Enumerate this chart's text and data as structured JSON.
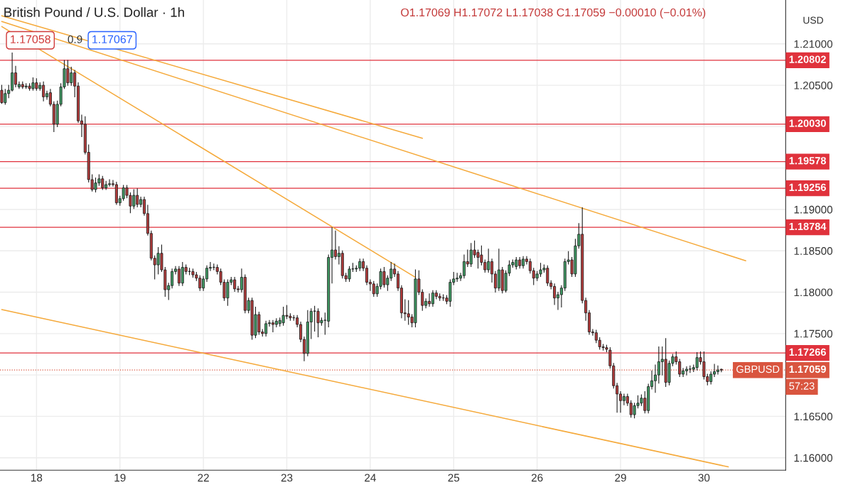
{
  "chart_data": {
    "type": "candlestick",
    "title": "British Pound / U.S. Dollar · 1h",
    "subtitle": "O1.17069 H1.17072 L1.17038 C1.17059 −0.00010 (−0.01%)",
    "ylabel": "USD",
    "annotations": [
      "1.17058",
      "0.9",
      "1.17067",
      "57:23",
      {
        "text": "GBPUSD",
        "y": 1.17059
      }
    ],
    "categories": [
      null,
      null,
      null,
      null,
      null,
      null,
      null,
      null,
      null,
      null,
      "18",
      null,
      null,
      null,
      null,
      null,
      null,
      null,
      null,
      null,
      null,
      null,
      null,
      null,
      null,
      null,
      null,
      null,
      null,
      null,
      null,
      null,
      null,
      null,
      "19",
      null,
      null,
      null,
      null,
      null,
      null,
      null,
      null,
      null,
      null,
      null,
      null,
      null,
      null,
      null,
      null,
      null,
      null,
      null,
      null,
      null,
      null,
      null,
      "22",
      null,
      null,
      null,
      null,
      null,
      null,
      null,
      null,
      null,
      null,
      null,
      null,
      null,
      null,
      null,
      null,
      null,
      null,
      null,
      null,
      null,
      null,
      null,
      "23",
      null,
      null,
      null,
      null,
      null,
      null,
      null,
      null,
      null,
      null,
      null,
      null,
      null,
      null,
      null,
      null,
      null,
      null,
      null,
      null,
      null,
      null,
      null,
      "24",
      null,
      null,
      null,
      null,
      null,
      null,
      null,
      null,
      null,
      null,
      null,
      null,
      null,
      null,
      null,
      null,
      null,
      null,
      null,
      null,
      null,
      null,
      null,
      "25",
      null,
      null,
      null,
      null,
      null,
      null,
      null,
      null,
      null,
      null,
      null,
      null,
      null,
      null,
      null,
      null,
      null,
      null,
      null,
      null,
      null,
      null,
      null,
      "26",
      null,
      null,
      null,
      null,
      null,
      null,
      null,
      null,
      null,
      null,
      null,
      null,
      null,
      null,
      null,
      null,
      null,
      null,
      null,
      null,
      null,
      null,
      null,
      "29",
      null,
      null,
      null,
      null,
      null,
      null,
      null,
      null,
      null,
      null,
      null,
      null,
      null,
      null,
      null,
      null,
      null,
      null,
      null,
      null,
      null,
      null,
      null,
      "30",
      null,
      null,
      null,
      null,
      null,
      null,
      null,
      null,
      null,
      null,
      null,
      null,
      null,
      null,
      null,
      null,
      null,
      null,
      null,
      null,
      null,
      null,
      null
    ],
    "ohlc": [
      [
        1.2044,
        1.205,
        1.2028,
        1.2029
      ],
      [
        1.2029,
        1.2045,
        1.2027,
        1.204
      ],
      [
        1.204,
        1.205,
        1.2035,
        1.2044
      ],
      [
        1.2044,
        1.2089,
        1.2043,
        1.2065
      ],
      [
        1.2065,
        1.2073,
        1.2048,
        1.2051
      ],
      [
        1.2048,
        1.2054,
        1.2046,
        1.2051
      ],
      [
        1.2051,
        1.2054,
        1.2046,
        1.2048
      ],
      [
        1.2048,
        1.2052,
        1.2046,
        1.2049
      ],
      [
        1.2049,
        1.2052,
        1.2044,
        1.2046
      ],
      [
        1.2046,
        1.2059,
        1.2044,
        1.2053
      ],
      [
        1.2053,
        1.2058,
        1.2044,
        1.2046
      ],
      [
        1.2046,
        1.2053,
        1.2044,
        1.205
      ],
      [
        1.205,
        1.2054,
        1.2031,
        1.2036
      ],
      [
        1.2036,
        1.2043,
        1.2033,
        1.204
      ],
      [
        1.2041,
        1.2045,
        1.2025,
        1.2027
      ],
      [
        1.2027,
        1.203,
        1.1994,
        1.2003
      ],
      [
        1.2003,
        1.2031,
        1.2,
        1.2027
      ],
      [
        1.2027,
        1.2052,
        1.2025,
        1.2048
      ],
      [
        1.2048,
        1.208,
        1.2046,
        1.207
      ],
      [
        1.207,
        1.208,
        1.205,
        1.2053
      ],
      [
        1.2053,
        1.2072,
        1.205,
        1.2065
      ],
      [
        1.2065,
        1.2068,
        1.2036,
        1.2049
      ],
      [
        1.2049,
        1.2053,
        1.2005,
        1.2007
      ],
      [
        1.2007,
        1.2014,
        1.1988,
        1.2003
      ],
      [
        1.2003,
        1.2012,
        1.1967,
        1.1969
      ],
      [
        1.1969,
        1.1978,
        1.1933,
        1.1936
      ],
      [
        1.1936,
        1.1942,
        1.1922,
        1.1924
      ],
      [
        1.1924,
        1.1938,
        1.1921,
        1.1932
      ],
      [
        1.1932,
        1.1942,
        1.1929,
        1.1937
      ],
      [
        1.1937,
        1.194,
        1.1924,
        1.1926
      ],
      [
        1.1926,
        1.1934,
        1.1924,
        1.193
      ],
      [
        1.193,
        1.1936,
        1.1928,
        1.1931
      ],
      [
        1.1931,
        1.1935,
        1.1928,
        1.193
      ],
      [
        1.193,
        1.1933,
        1.1906,
        1.1908
      ],
      [
        1.1908,
        1.1916,
        1.1905,
        1.1913
      ],
      [
        1.1913,
        1.1929,
        1.1911,
        1.1926
      ],
      [
        1.1926,
        1.1929,
        1.1914,
        1.1917
      ],
      [
        1.1917,
        1.192,
        1.1896,
        1.1904
      ],
      [
        1.1904,
        1.1924,
        1.1901,
        1.1917
      ],
      [
        1.1917,
        1.1925,
        1.1903,
        1.1906
      ],
      [
        1.1906,
        1.1915,
        1.1903,
        1.1912
      ],
      [
        1.1912,
        1.1915,
        1.1893,
        1.1895
      ],
      [
        1.1895,
        1.1905,
        1.1869,
        1.1871
      ],
      [
        1.1871,
        1.1874,
        1.1839,
        1.1841
      ],
      [
        1.1841,
        1.1844,
        1.1816,
        1.1833
      ],
      [
        1.1833,
        1.1854,
        1.1822,
        1.1847
      ],
      [
        1.1847,
        1.1857,
        1.1825,
        1.1827
      ],
      [
        1.1827,
        1.183,
        1.1795,
        1.1803
      ],
      [
        1.1803,
        1.1811,
        1.1791,
        1.1808
      ],
      [
        1.1808,
        1.1828,
        1.1805,
        1.1825
      ],
      [
        1.1825,
        1.1831,
        1.1822,
        1.1828
      ],
      [
        1.1828,
        1.1831,
        1.1808,
        1.1811
      ],
      [
        1.1811,
        1.1836,
        1.1808,
        1.183
      ],
      [
        1.183,
        1.1833,
        1.1822,
        1.1825
      ],
      [
        1.1825,
        1.1829,
        1.1821,
        1.1825
      ],
      [
        1.1825,
        1.1828,
        1.1818,
        1.1821
      ],
      [
        1.1821,
        1.1824,
        1.1814,
        1.1817
      ],
      [
        1.1817,
        1.182,
        1.1802,
        1.1805
      ],
      [
        1.1805,
        1.1819,
        1.1802,
        1.1816
      ],
      [
        1.1816,
        1.1832,
        1.1813,
        1.1829
      ],
      [
        1.1829,
        1.1836,
        1.1826,
        1.183
      ],
      [
        1.183,
        1.1834,
        1.1827,
        1.183
      ],
      [
        1.183,
        1.1833,
        1.1822,
        1.1825
      ],
      [
        1.1825,
        1.1828,
        1.1809,
        1.1812
      ],
      [
        1.1812,
        1.1815,
        1.179,
        1.1793
      ],
      [
        1.1793,
        1.1815,
        1.1784,
        1.1812
      ],
      [
        1.1812,
        1.1818,
        1.1809,
        1.1815
      ],
      [
        1.1815,
        1.1818,
        1.1801,
        1.1804
      ],
      [
        1.1804,
        1.1807,
        1.18,
        1.1803
      ],
      [
        1.1803,
        1.1828,
        1.18,
        1.1818
      ],
      [
        1.1818,
        1.1821,
        1.1775,
        1.1778
      ],
      [
        1.1778,
        1.1793,
        1.1775,
        1.179
      ],
      [
        1.179,
        1.1793,
        1.1743,
        1.1748
      ],
      [
        1.1748,
        1.1782,
        1.1745,
        1.1773
      ],
      [
        1.1773,
        1.1776,
        1.1749,
        1.1752
      ],
      [
        1.1752,
        1.1755,
        1.1747,
        1.175
      ],
      [
        1.175,
        1.1765,
        1.1747,
        1.1762
      ],
      [
        1.1762,
        1.1766,
        1.1759,
        1.1763
      ],
      [
        1.1763,
        1.1766,
        1.1752,
        1.1761
      ],
      [
        1.1761,
        1.1768,
        1.1758,
        1.1765
      ],
      [
        1.1762,
        1.1769,
        1.1759,
        1.1766
      ],
      [
        1.1763,
        1.1782,
        1.176,
        1.1772
      ],
      [
        1.1772,
        1.1784,
        1.1768,
        1.1771
      ],
      [
        1.1771,
        1.1774,
        1.1766,
        1.1769
      ],
      [
        1.1769,
        1.1772,
        1.1766,
        1.1769
      ],
      [
        1.1769,
        1.1772,
        1.1758,
        1.1761
      ],
      [
        1.1761,
        1.1764,
        1.174,
        1.1743
      ],
      [
        1.1743,
        1.1746,
        1.1717,
        1.1726
      ],
      [
        1.1726,
        1.1778,
        1.1723,
        1.1764
      ],
      [
        1.1764,
        1.178,
        1.1744,
        1.1777
      ],
      [
        1.1777,
        1.1783,
        1.1753,
        1.1777
      ],
      [
        1.1777,
        1.178,
        1.1746,
        1.1763
      ],
      [
        1.1763,
        1.1769,
        1.176,
        1.1766
      ],
      [
        1.1766,
        1.1775,
        1.1749,
        1.1766
      ],
      [
        1.1765,
        1.1845,
        1.1758,
        1.1842
      ],
      [
        1.1842,
        1.1878,
        1.1811,
        1.1851
      ],
      [
        1.1851,
        1.1874,
        1.184,
        1.1843
      ],
      [
        1.1843,
        1.1855,
        1.1834,
        1.1847
      ],
      [
        1.1847,
        1.185,
        1.1817,
        1.182
      ],
      [
        1.182,
        1.1823,
        1.1813,
        1.1816
      ],
      [
        1.1816,
        1.1831,
        1.1813,
        1.1828
      ],
      [
        1.1828,
        1.1835,
        1.1825,
        1.1828
      ],
      [
        1.1828,
        1.1832,
        1.1825,
        1.1829
      ],
      [
        1.1829,
        1.184,
        1.1826,
        1.1837
      ],
      [
        1.1837,
        1.184,
        1.1826,
        1.1829
      ],
      [
        1.1829,
        1.1832,
        1.1809,
        1.1812
      ],
      [
        1.1812,
        1.1815,
        1.1802,
        1.181
      ],
      [
        1.181,
        1.1813,
        1.1795,
        1.1798
      ],
      [
        1.1798,
        1.181,
        1.1795,
        1.1807
      ],
      [
        1.1807,
        1.1828,
        1.1804,
        1.1825
      ],
      [
        1.1825,
        1.183,
        1.1806,
        1.1809
      ],
      [
        1.1809,
        1.182,
        1.1802,
        1.1817
      ],
      [
        1.1817,
        1.1836,
        1.1814,
        1.1828
      ],
      [
        1.1828,
        1.1834,
        1.1819,
        1.1822
      ],
      [
        1.1822,
        1.1825,
        1.1802,
        1.1805
      ],
      [
        1.1805,
        1.1808,
        1.1769,
        1.1775
      ],
      [
        1.1775,
        1.1791,
        1.1766,
        1.1774
      ],
      [
        1.1774,
        1.179,
        1.1761,
        1.177
      ],
      [
        1.177,
        1.1773,
        1.1758,
        1.1763
      ],
      [
        1.1763,
        1.1827,
        1.1758,
        1.1816
      ],
      [
        1.1816,
        1.1826,
        1.1797,
        1.18
      ],
      [
        1.18,
        1.1803,
        1.1778,
        1.1784
      ],
      [
        1.1784,
        1.1792,
        1.1781,
        1.1789
      ],
      [
        1.1789,
        1.1798,
        1.1783,
        1.1786
      ],
      [
        1.1786,
        1.1802,
        1.1783,
        1.1799
      ],
      [
        1.1799,
        1.1802,
        1.1792,
        1.1795
      ],
      [
        1.1795,
        1.1798,
        1.179,
        1.1793
      ],
      [
        1.1793,
        1.1797,
        1.179,
        1.1793
      ],
      [
        1.1793,
        1.1796,
        1.1786,
        1.1789
      ],
      [
        1.1789,
        1.1815,
        1.1783,
        1.1812
      ],
      [
        1.1812,
        1.1824,
        1.1809,
        1.1816
      ],
      [
        1.1816,
        1.1823,
        1.1813,
        1.1817
      ],
      [
        1.1817,
        1.1823,
        1.1814,
        1.182
      ],
      [
        1.182,
        1.1845,
        1.1817,
        1.1837
      ],
      [
        1.1837,
        1.1851,
        1.1831,
        1.1834
      ],
      [
        1.1834,
        1.1859,
        1.1831,
        1.1851
      ],
      [
        1.1851,
        1.1862,
        1.1842,
        1.1845
      ],
      [
        1.1848,
        1.1851,
        1.1829,
        1.1842
      ],
      [
        1.1845,
        1.1856,
        1.1833,
        1.1836
      ],
      [
        1.1836,
        1.1839,
        1.1824,
        1.1827
      ],
      [
        1.1827,
        1.1852,
        1.1824,
        1.1837
      ],
      [
        1.1837,
        1.184,
        1.1812,
        1.1822
      ],
      [
        1.1822,
        1.1825,
        1.18,
        1.1805
      ],
      [
        1.1805,
        1.1852,
        1.1802,
        1.1827
      ],
      [
        1.1827,
        1.183,
        1.1799,
        1.1802
      ],
      [
        1.1802,
        1.1826,
        1.18,
        1.1823
      ],
      [
        1.1823,
        1.1838,
        1.182,
        1.1833
      ],
      [
        1.1833,
        1.1839,
        1.183,
        1.1836
      ],
      [
        1.1831,
        1.1842,
        1.1828,
        1.1839
      ],
      [
        1.1839,
        1.1842,
        1.1829,
        1.1832
      ],
      [
        1.1832,
        1.1843,
        1.1829,
        1.184
      ],
      [
        1.184,
        1.1843,
        1.1834,
        1.1837
      ],
      [
        1.1837,
        1.184,
        1.1823,
        1.1826
      ],
      [
        1.1826,
        1.1829,
        1.1809,
        1.1817
      ],
      [
        1.1817,
        1.1825,
        1.1814,
        1.1822
      ],
      [
        1.1822,
        1.1835,
        1.1819,
        1.1827
      ],
      [
        1.1827,
        1.1833,
        1.1824,
        1.1829
      ],
      [
        1.1829,
        1.1832,
        1.1808,
        1.1811
      ],
      [
        1.1811,
        1.1814,
        1.1804,
        1.1807
      ],
      [
        1.1807,
        1.181,
        1.1785,
        1.1793
      ],
      [
        1.1793,
        1.18,
        1.1779,
        1.1797
      ],
      [
        1.1797,
        1.1808,
        1.1782,
        1.1805
      ],
      [
        1.1805,
        1.184,
        1.1802,
        1.1837
      ],
      [
        1.1837,
        1.1849,
        1.1834,
        1.1839
      ],
      [
        1.1839,
        1.1842,
        1.1819,
        1.1822
      ],
      [
        1.1822,
        1.1864,
        1.1819,
        1.1856
      ],
      [
        1.1856,
        1.1883,
        1.1853,
        1.187
      ],
      [
        1.187,
        1.1902,
        1.1787,
        1.179
      ],
      [
        1.179,
        1.1793,
        1.1766,
        1.1775
      ],
      [
        1.1775,
        1.1778,
        1.1749,
        1.1752
      ],
      [
        1.1752,
        1.1755,
        1.1748,
        1.1751
      ],
      [
        1.1751,
        1.1754,
        1.1739,
        1.1742
      ],
      [
        1.1742,
        1.1745,
        1.1731,
        1.1734
      ],
      [
        1.1734,
        1.1737,
        1.173,
        1.1733
      ],
      [
        1.1733,
        1.1736,
        1.1728,
        1.1731
      ],
      [
        1.173,
        1.1733,
        1.1708,
        1.1711
      ],
      [
        1.1711,
        1.1714,
        1.1684,
        1.1687
      ],
      [
        1.1687,
        1.169,
        1.1655,
        1.1677
      ],
      [
        1.1677,
        1.168,
        1.1655,
        1.1669
      ],
      [
        1.1669,
        1.1677,
        1.1664,
        1.1674
      ],
      [
        1.1674,
        1.1677,
        1.1663,
        1.1666
      ],
      [
        1.1666,
        1.1669,
        1.1649,
        1.1652
      ],
      [
        1.1652,
        1.1666,
        1.1648,
        1.1663
      ],
      [
        1.1663,
        1.1675,
        1.166,
        1.1666
      ],
      [
        1.1666,
        1.1676,
        1.1663,
        1.1672
      ],
      [
        1.1672,
        1.168,
        1.1654,
        1.1657
      ],
      [
        1.1657,
        1.1689,
        1.1654,
        1.1686
      ],
      [
        1.1686,
        1.1705,
        1.1683,
        1.1693
      ],
      [
        1.1693,
        1.1712,
        1.1679,
        1.17
      ],
      [
        1.17,
        1.1734,
        1.169,
        1.1716
      ],
      [
        1.1716,
        1.1734,
        1.17,
        1.1719
      ],
      [
        1.1719,
        1.1744,
        1.1686,
        1.1691
      ],
      [
        1.1691,
        1.1717,
        1.1688,
        1.1714
      ],
      [
        1.1714,
        1.1725,
        1.1711,
        1.1722
      ],
      [
        1.1722,
        1.1728,
        1.1713,
        1.1716
      ],
      [
        1.1716,
        1.1719,
        1.1698,
        1.1701
      ],
      [
        1.1701,
        1.1708,
        1.1698,
        1.1705
      ],
      [
        1.1705,
        1.171,
        1.17,
        1.1707
      ],
      [
        1.1707,
        1.1711,
        1.1703,
        1.1707
      ],
      [
        1.1707,
        1.1712,
        1.1704,
        1.1709
      ],
      [
        1.1709,
        1.1727,
        1.1706,
        1.1721
      ],
      [
        1.1721,
        1.1728,
        1.1713,
        1.1716
      ],
      [
        1.1716,
        1.1728,
        1.1695,
        1.1698
      ],
      [
        1.1698,
        1.1701,
        1.1688,
        1.1692
      ],
      [
        1.1692,
        1.1704,
        1.1689,
        1.1701
      ],
      [
        1.1701,
        1.1713,
        1.1698,
        1.1704
      ],
      [
        1.1704,
        1.1711,
        1.1701,
        1.1706
      ],
      [
        1.17069,
        1.17072,
        1.17038,
        1.17059
      ],
      null,
      null,
      null,
      null,
      null,
      null,
      null,
      null,
      null,
      null,
      null,
      null,
      null,
      null,
      null,
      null,
      null,
      null
    ],
    "series": [
      {
        "type": "line",
        "color": "#f5a93a",
        "values": [
          1.2127,
          null,
          null,
          null,
          null,
          null,
          null,
          null,
          null,
          null,
          null,
          null,
          null,
          null,
          null,
          null,
          null,
          null,
          null,
          null,
          null,
          null,
          null,
          null,
          null,
          null,
          null,
          null,
          null,
          null,
          null,
          null,
          null,
          null,
          null,
          null,
          null,
          null,
          null,
          null,
          null,
          null,
          null,
          null,
          null,
          null,
          null,
          null,
          null,
          null,
          null,
          null,
          null,
          null,
          null,
          null,
          null,
          null,
          null,
          null,
          null,
          null,
          null,
          null,
          null,
          null,
          null,
          null,
          null,
          null,
          null,
          null,
          null,
          null,
          null,
          null,
          null,
          null,
          null,
          null,
          null,
          null,
          null,
          null,
          null,
          null,
          null,
          null,
          null,
          null,
          null,
          null,
          null,
          null,
          null,
          null,
          null,
          null,
          null,
          null,
          null,
          null,
          null,
          null,
          null,
          null,
          null,
          null,
          null,
          null,
          null,
          null,
          null,
          null,
          null,
          null,
          null,
          null,
          null,
          null,
          null,
          null,
          null,
          null,
          null,
          null,
          null,
          null,
          null,
          null,
          null,
          null,
          null,
          null,
          null,
          null,
          null,
          null,
          null,
          null,
          null,
          null,
          null,
          null,
          null,
          null,
          null,
          null,
          null,
          null,
          null,
          null,
          null,
          null,
          null,
          null,
          null,
          null,
          null,
          null,
          null,
          null,
          null,
          null,
          null,
          null,
          null,
          null,
          null,
          null,
          null,
          null,
          null,
          null,
          null,
          null,
          null,
          null,
          null,
          null,
          null,
          null,
          null,
          null,
          null,
          null,
          null,
          null,
          null,
          null,
          null,
          null,
          null,
          null,
          null,
          null,
          null,
          null,
          null,
          null,
          null,
          null,
          null,
          null,
          null,
          null,
          null,
          null,
          null,
          null,
          null,
          null,
          null,
          null,
          1.1838,
          null,
          null,
          null,
          null,
          null,
          null,
          null,
          null,
          null,
          null,
          null
        ]
      },
      {
        "type": "line",
        "color": "#f5a93a",
        "values": [
          1.2134,
          null,
          null,
          null,
          null,
          null,
          null,
          null,
          null,
          null,
          null,
          null,
          null,
          null,
          null,
          null,
          null,
          null,
          null,
          null,
          null,
          null,
          null,
          null,
          null,
          null,
          null,
          null,
          null,
          null,
          null,
          null,
          null,
          null,
          null,
          null,
          null,
          null,
          null,
          null,
          null,
          null,
          null,
          null,
          null,
          null,
          null,
          null,
          null,
          null,
          null,
          null,
          null,
          null,
          null,
          null,
          null,
          null,
          null,
          null,
          null,
          null,
          null,
          null,
          null,
          null,
          null,
          null,
          null,
          null,
          null,
          null,
          null,
          null,
          null,
          null,
          null,
          null,
          null,
          null,
          null,
          null,
          null,
          null,
          null,
          null,
          null,
          null,
          null,
          null,
          null,
          null,
          null,
          null,
          null,
          null,
          null,
          null,
          null,
          null,
          null,
          null,
          null,
          null,
          null,
          null,
          null,
          null,
          null,
          null,
          null,
          null,
          null,
          null,
          null,
          null,
          null,
          null,
          null,
          null,
          null,
          1.1986,
          null,
          null,
          null,
          null,
          null,
          null,
          null,
          null,
          null,
          null,
          null,
          null,
          null,
          null,
          null,
          null,
          null,
          null,
          null,
          null,
          null,
          null,
          null,
          null,
          null,
          null,
          null,
          null,
          null,
          null,
          null,
          null,
          null,
          null,
          null,
          null,
          null,
          null,
          null,
          null,
          null,
          null,
          null,
          null,
          null,
          null,
          null,
          null,
          null,
          null,
          null,
          null,
          null,
          null,
          null,
          null,
          null,
          null,
          null,
          null,
          null,
          null,
          null,
          null,
          null,
          null,
          null,
          null,
          null,
          null,
          null,
          null,
          null,
          null,
          null,
          null,
          null,
          null,
          null,
          null,
          null,
          null,
          null,
          null,
          null,
          null,
          null,
          null,
          null,
          null,
          null,
          null,
          null,
          null,
          null,
          null,
          null,
          null,
          null,
          null,
          null,
          null,
          null,
          null
        ]
      },
      {
        "type": "line",
        "color": "#f5a93a",
        "values": [
          1.2121,
          null,
          null,
          null,
          null,
          null,
          null,
          null,
          null,
          null,
          null,
          null,
          null,
          null,
          null,
          null,
          null,
          null,
          null,
          null,
          null,
          null,
          null,
          null,
          null,
          null,
          null,
          null,
          null,
          null,
          null,
          null,
          null,
          null,
          null,
          null,
          null,
          null,
          null,
          null,
          null,
          null,
          null,
          null,
          null,
          null,
          null,
          null,
          null,
          null,
          null,
          null,
          null,
          null,
          null,
          null,
          null,
          null,
          null,
          null,
          null,
          null,
          null,
          null,
          null,
          null,
          null,
          null,
          null,
          null,
          null,
          null,
          null,
          null,
          null,
          null,
          null,
          null,
          null,
          null,
          null,
          null,
          null,
          null,
          null,
          null,
          null,
          null,
          null,
          null,
          null,
          null,
          null,
          null,
          null,
          null,
          null,
          null,
          null,
          null,
          null,
          null,
          null,
          null,
          null,
          null,
          null,
          null,
          null,
          null,
          null,
          null,
          null,
          null,
          null,
          null,
          null,
          null,
          null,
          1.1818,
          null,
          null,
          null,
          null,
          null,
          null,
          null,
          null,
          null,
          null,
          null,
          null,
          null,
          null,
          null,
          null,
          null,
          null,
          null,
          null,
          null,
          null,
          null,
          null,
          null,
          null,
          null,
          null,
          null,
          null,
          null,
          null,
          null,
          null,
          null,
          null,
          null,
          null,
          null,
          null,
          null,
          null,
          null,
          null,
          null,
          null,
          null,
          null,
          null,
          null,
          null,
          null,
          null,
          null,
          null,
          null,
          null,
          null,
          null,
          null,
          null,
          null,
          null,
          null,
          null,
          null,
          null,
          null,
          null,
          null,
          null,
          null,
          null,
          null,
          null,
          null,
          null,
          null,
          null,
          null,
          null,
          null,
          null,
          null,
          null,
          null,
          null,
          null,
          null,
          null,
          null,
          null,
          null,
          null,
          null,
          null,
          null,
          null,
          null,
          null,
          null,
          null,
          null,
          null,
          null,
          null
        ]
      },
      {
        "type": "line",
        "color": "#f5a93a",
        "values": [
          1.1779,
          null,
          null,
          null,
          null,
          null,
          null,
          null,
          null,
          null,
          null,
          null,
          null,
          null,
          null,
          null,
          null,
          null,
          null,
          null,
          null,
          null,
          null,
          null,
          null,
          null,
          null,
          null,
          null,
          null,
          null,
          null,
          null,
          null,
          null,
          null,
          null,
          null,
          null,
          null,
          null,
          null,
          null,
          null,
          null,
          null,
          null,
          null,
          null,
          null,
          null,
          null,
          null,
          null,
          null,
          null,
          null,
          null,
          null,
          null,
          null,
          null,
          null,
          null,
          null,
          null,
          null,
          null,
          null,
          null,
          null,
          null,
          null,
          null,
          null,
          null,
          null,
          null,
          null,
          null,
          null,
          null,
          null,
          null,
          null,
          null,
          null,
          null,
          null,
          null,
          null,
          null,
          null,
          null,
          null,
          null,
          null,
          null,
          null,
          null,
          null,
          null,
          null,
          null,
          null,
          null,
          null,
          null,
          null,
          null,
          null,
          null,
          null,
          null,
          null,
          null,
          null,
          null,
          null,
          null,
          null,
          null,
          null,
          null,
          null,
          null,
          null,
          null,
          null,
          null,
          null,
          null,
          null,
          null,
          null,
          null,
          null,
          null,
          null,
          null,
          null,
          null,
          null,
          null,
          null,
          null,
          null,
          null,
          null,
          null,
          null,
          null,
          null,
          null,
          null,
          null,
          null,
          null,
          null,
          null,
          null,
          null,
          null,
          null,
          null,
          null,
          null,
          null,
          null,
          null,
          null,
          null,
          null,
          null,
          null,
          null,
          null,
          null,
          null,
          null,
          null,
          null,
          null,
          null,
          null,
          null,
          null,
          null,
          null,
          null,
          null,
          null,
          null,
          null,
          null,
          null,
          null,
          null,
          null,
          null,
          null,
          null,
          null,
          null,
          null,
          null,
          null,
          null,
          null,
          1.1589,
          null,
          null,
          null,
          null,
          null,
          null,
          null,
          null,
          null,
          null,
          null,
          null,
          null,
          null,
          null,
          null
        ]
      }
    ],
    "ref_lines": [
      {
        "axis": "y",
        "value": 1.20802,
        "label": "1.20802",
        "color": "#e0323c"
      },
      {
        "axis": "y",
        "value": 1.2003,
        "label": "1.20030",
        "color": "#e0323c"
      },
      {
        "axis": "y",
        "value": 1.19578,
        "label": "1.19578",
        "color": "#e0323c"
      },
      {
        "axis": "y",
        "value": 1.19256,
        "label": "1.19256",
        "color": "#e0323c"
      },
      {
        "axis": "y",
        "value": 1.18784,
        "label": "1.18784",
        "color": "#e0323c"
      },
      {
        "axis": "y",
        "value": 1.17266,
        "label": "1.17266",
        "color": "#e0323c"
      },
      {
        "axis": "y",
        "value": 1.17059,
        "label": "1.17059",
        "color": "#d9553f",
        "line_style": "dotted"
      }
    ],
    "ylim": [
      1.1585,
      1.2153
    ],
    "yticks": [
      {
        "value": 1.16,
        "label": "1.16000"
      },
      {
        "value": 1.165,
        "label": "1.16500"
      },
      {
        "value": 1.17,
        "label": null
      },
      {
        "value": 1.175,
        "label": "1.17500"
      },
      {
        "value": 1.18,
        "label": "1.18000"
      },
      {
        "value": 1.185,
        "label": "1.18500"
      },
      {
        "value": 1.19,
        "label": "1.19000"
      },
      {
        "value": 1.195,
        "label": null
      },
      {
        "value": 1.2,
        "label": null
      },
      {
        "value": 1.205,
        "label": "1.20500"
      },
      {
        "value": 1.21,
        "label": "1.21000"
      }
    ],
    "grid": true
  }
}
